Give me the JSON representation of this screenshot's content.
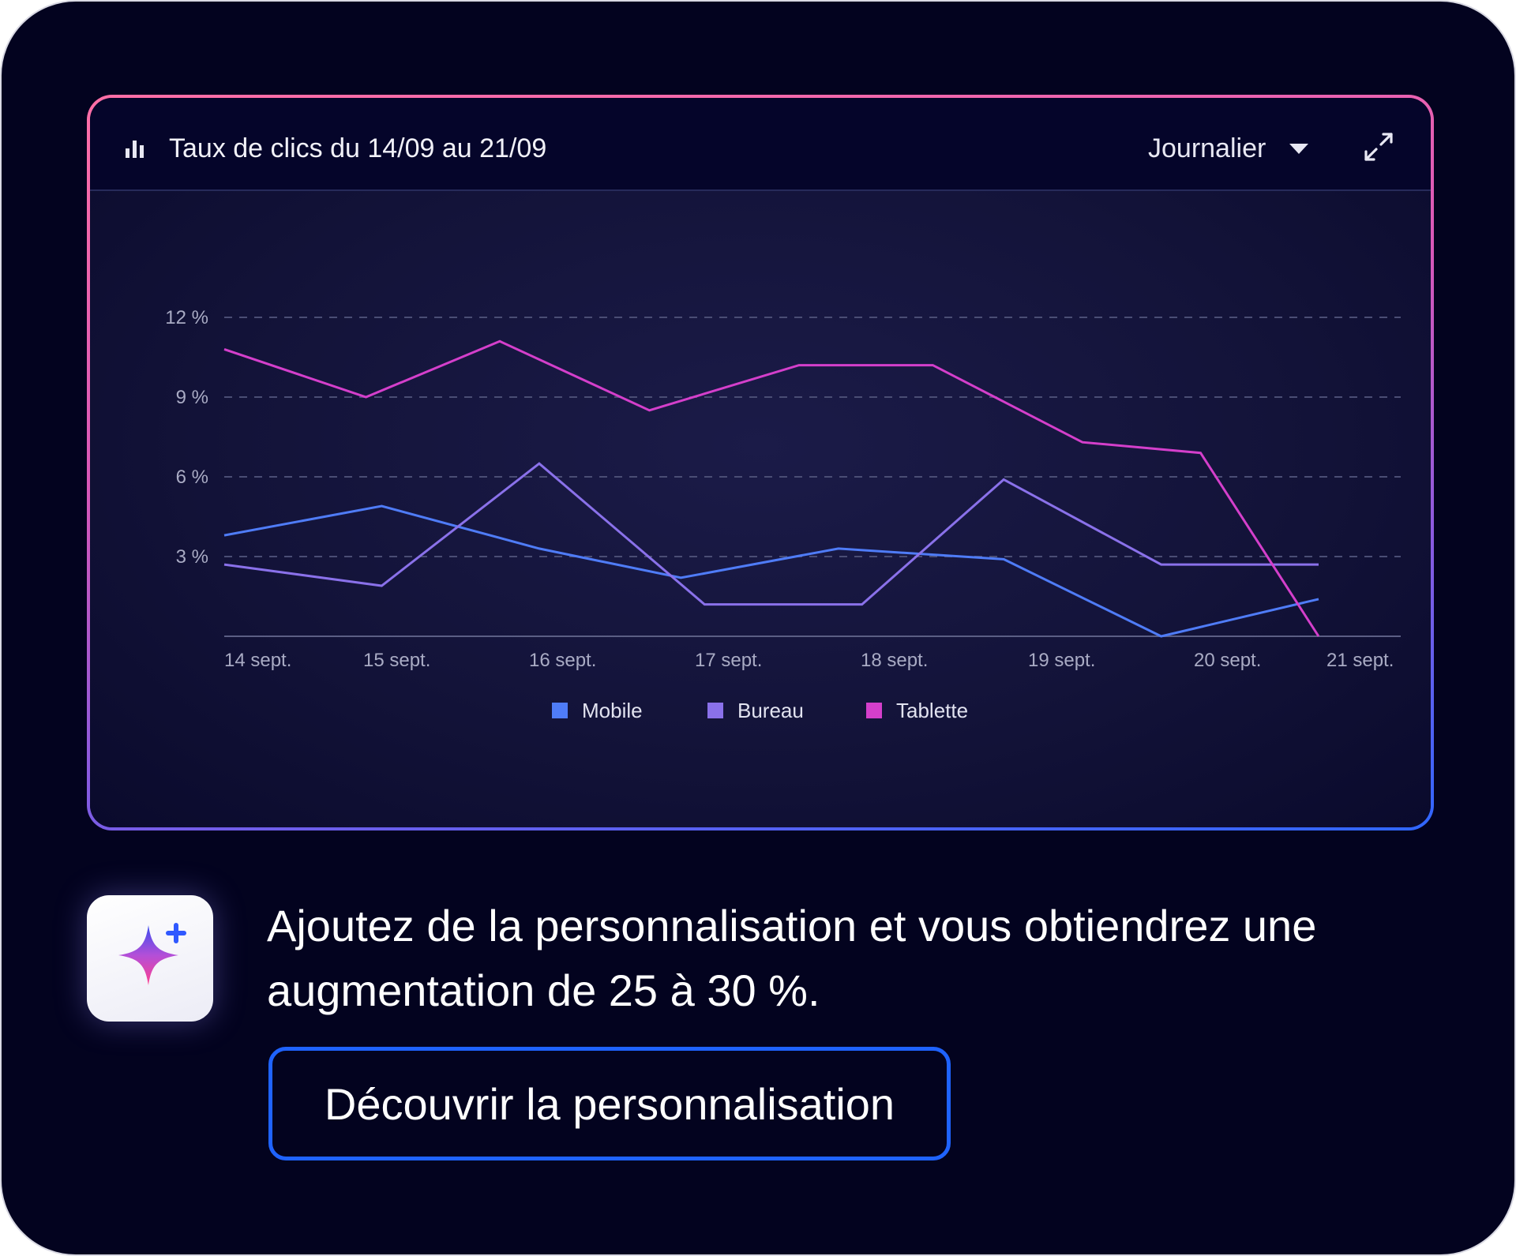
{
  "card": {
    "chart_title": "Taux de clics du 14/09 au 21/09",
    "period_select": "Journalier"
  },
  "colors": {
    "background": "#03031f",
    "mobile": "#4f7cf7",
    "bureau": "#8a71ea",
    "tablette": "#d43fcb",
    "button_border": "#1f63ff"
  },
  "icons": {
    "title": "bar-chart-icon",
    "dropdown": "chevron-down-icon",
    "expand": "expand-icon",
    "promo": "sparkle-icon"
  },
  "chart_data": {
    "type": "line",
    "title": "Taux de clics du 14/09 au 21/09",
    "categories": [
      "14 sept.",
      "15 sept.",
      "16 sept.",
      "17 sept.",
      "18 sept.",
      "19 sept.",
      "20 sept.",
      "21 sept."
    ],
    "yticks": [
      "3 %",
      "6 %",
      "9 %",
      "12 %"
    ],
    "ylim": [
      0,
      12
    ],
    "grid": true,
    "legend_position": "bottom",
    "series": [
      {
        "name": "Mobile",
        "color": "#4f7cf7",
        "points": [
          [
            0,
            3.8
          ],
          [
            1.0,
            4.9
          ],
          [
            2.0,
            3.3
          ],
          [
            2.9,
            2.2
          ],
          [
            3.9,
            3.3
          ],
          [
            4.95,
            2.9
          ],
          [
            5.95,
            0.0
          ],
          [
            6.95,
            1.4
          ]
        ]
      },
      {
        "name": "Bureau",
        "color": "#8a71ea",
        "points": [
          [
            0,
            2.7
          ],
          [
            1.0,
            1.9
          ],
          [
            2.0,
            6.5
          ],
          [
            3.05,
            1.2
          ],
          [
            4.05,
            1.2
          ],
          [
            4.95,
            5.9
          ],
          [
            5.95,
            2.7
          ],
          [
            6.95,
            2.7
          ]
        ]
      },
      {
        "name": "Tablette",
        "color": "#d43fcb",
        "points": [
          [
            0,
            10.8
          ],
          [
            0.9,
            9.0
          ],
          [
            1.75,
            11.1
          ],
          [
            2.7,
            8.5
          ],
          [
            3.65,
            10.2
          ],
          [
            4.5,
            10.2
          ],
          [
            5.45,
            7.3
          ],
          [
            6.2,
            6.9
          ],
          [
            6.95,
            0.0
          ]
        ]
      }
    ]
  },
  "promo": {
    "text": "Ajoutez de la personnalisation et vous obtiendrez une augmentation de 25 à 30 %.",
    "button_label": "Découvrir la personnalisation"
  }
}
